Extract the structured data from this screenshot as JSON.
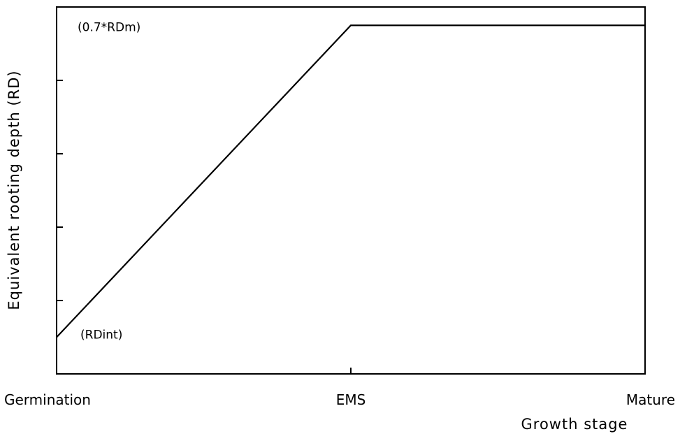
{
  "chart_data": {
    "type": "line",
    "title": "",
    "xlabel": "Growth stage",
    "ylabel": "Equivalent rooting depth (RD)",
    "x_categories": [
      "Germination",
      "EMS",
      "Mature"
    ],
    "ylim": [
      0,
      1
    ],
    "y_tick_values": [
      0.2,
      0.4,
      0.6,
      0.8
    ],
    "grid": false,
    "legend": "none",
    "series": [
      {
        "points": [
          {
            "x": 0,
            "y": 0.1
          },
          {
            "x": 1,
            "y": 0.95
          },
          {
            "x": 2,
            "y": 0.95
          }
        ]
      }
    ],
    "annotations": [
      {
        "text": "(0.7*RDm)",
        "x": 0,
        "y": 0.95
      },
      {
        "text": "(RDint)",
        "x": 0,
        "y": 0.1
      }
    ]
  }
}
